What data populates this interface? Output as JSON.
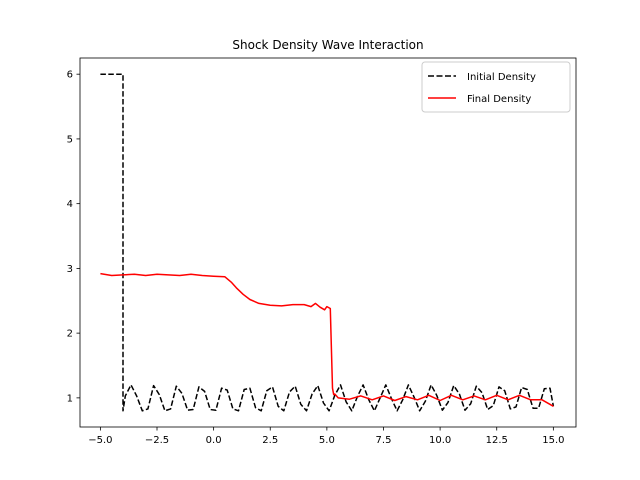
{
  "chart_data": {
    "type": "line",
    "title": "Shock Density Wave Interaction",
    "xlabel": "",
    "ylabel": "",
    "xlim": [
      -5.9,
      16.0
    ],
    "ylim": [
      0.55,
      6.25
    ],
    "x_ticks": [
      -5.0,
      -2.5,
      0.0,
      2.5,
      5.0,
      7.5,
      10.0,
      12.5,
      15.0
    ],
    "x_tick_labels": [
      "−5.0",
      "−2.5",
      "0.0",
      "2.5",
      "5.0",
      "7.5",
      "10.0",
      "12.5",
      "15.0"
    ],
    "y_ticks": [
      1,
      2,
      3,
      4,
      5,
      6
    ],
    "y_tick_labels": [
      "1",
      "2",
      "3",
      "4",
      "5",
      "6"
    ],
    "grid": false,
    "legend_position": "top-right",
    "series": [
      {
        "name": "Initial Density",
        "color": "#000000",
        "style": "dashed",
        "x": [
          -5.0,
          -4.0,
          -4.0,
          -3.9,
          -3.65,
          -3.4,
          -3.15,
          -2.9,
          -2.65,
          -2.4,
          -2.15,
          -1.9,
          -1.65,
          -1.4,
          -1.15,
          -0.9,
          -0.65,
          -0.4,
          -0.15,
          0.1,
          0.35,
          0.6,
          0.85,
          1.1,
          1.35,
          1.6,
          1.85,
          2.1,
          2.35,
          2.6,
          2.85,
          3.1,
          3.35,
          3.6,
          3.85,
          4.1,
          4.35,
          4.6,
          4.85,
          5.1,
          5.35,
          5.6,
          5.85,
          6.1,
          6.35,
          6.6,
          6.85,
          7.1,
          7.35,
          7.6,
          7.85,
          8.1,
          8.35,
          8.6,
          8.85,
          9.1,
          9.35,
          9.6,
          9.85,
          10.1,
          10.35,
          10.6,
          10.85,
          11.1,
          11.35,
          11.6,
          11.85,
          12.1,
          12.35,
          12.6,
          12.85,
          13.1,
          13.35,
          13.6,
          13.85,
          14.1,
          14.35,
          14.6,
          14.85,
          15.0
        ],
        "y": [
          6.0,
          6.0,
          0.8,
          1.03,
          1.2,
          1.03,
          0.8,
          0.83,
          1.19,
          1.05,
          0.8,
          0.83,
          1.18,
          1.07,
          0.81,
          0.82,
          1.17,
          1.1,
          0.82,
          0.81,
          1.15,
          1.12,
          0.83,
          0.8,
          1.13,
          1.15,
          0.85,
          0.8,
          1.11,
          1.17,
          0.87,
          0.8,
          1.09,
          1.18,
          0.9,
          0.8,
          1.06,
          1.19,
          0.92,
          0.8,
          1.04,
          1.2,
          0.94,
          0.8,
          1.02,
          1.2,
          0.97,
          0.8,
          1.0,
          1.2,
          0.99,
          0.8,
          0.97,
          1.2,
          1.01,
          0.8,
          0.95,
          1.2,
          1.04,
          0.81,
          0.93,
          1.19,
          1.06,
          0.81,
          0.91,
          1.18,
          1.08,
          0.82,
          0.88,
          1.17,
          1.11,
          0.83,
          0.86,
          1.16,
          1.13,
          0.84,
          0.84,
          1.14,
          1.15,
          0.87
        ]
      },
      {
        "name": "Final Density",
        "color": "#ff0000",
        "style": "solid",
        "x": [
          -5.0,
          -4.5,
          -4.0,
          -3.5,
          -3.0,
          -2.5,
          -2.0,
          -1.5,
          -1.0,
          -0.5,
          0.0,
          0.5,
          0.8,
          1.0,
          1.3,
          1.6,
          2.0,
          2.5,
          3.0,
          3.5,
          4.0,
          4.3,
          4.5,
          4.7,
          4.9,
          5.0,
          5.15,
          5.25,
          5.3,
          5.35,
          5.5,
          6.0,
          6.5,
          7.0,
          7.5,
          8.0,
          8.5,
          9.0,
          9.5,
          10.0,
          10.5,
          11.0,
          11.5,
          12.0,
          12.5,
          13.0,
          13.5,
          14.0,
          14.5,
          15.0
        ],
        "y": [
          2.92,
          2.89,
          2.9,
          2.91,
          2.89,
          2.91,
          2.9,
          2.89,
          2.91,
          2.89,
          2.88,
          2.87,
          2.78,
          2.7,
          2.6,
          2.52,
          2.46,
          2.43,
          2.42,
          2.44,
          2.44,
          2.41,
          2.46,
          2.4,
          2.36,
          2.41,
          2.38,
          1.15,
          1.05,
          1.06,
          1.0,
          0.98,
          1.03,
          0.97,
          1.03,
          0.96,
          1.02,
          0.97,
          1.04,
          0.96,
          1.04,
          0.97,
          1.03,
          0.97,
          1.04,
          0.97,
          1.04,
          0.97,
          0.97,
          0.87
        ]
      }
    ]
  }
}
